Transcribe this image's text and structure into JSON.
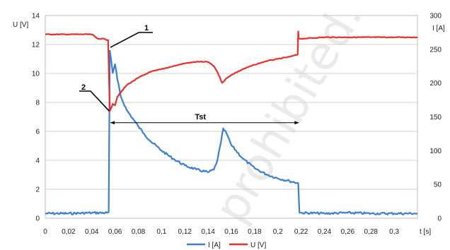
{
  "chart_data": {
    "type": "line",
    "title": "",
    "xlabel": "t [s]",
    "ylabel_left": "U [V]",
    "ylabel_right": "I [A]",
    "xlim": [
      0,
      0.32
    ],
    "ylim_left": [
      0,
      14
    ],
    "ylim_right": [
      0,
      300
    ],
    "x_ticks": [
      "0",
      "0,02",
      "0,04",
      "0,06",
      "0,08",
      "0,1",
      "0,12",
      "0,14",
      "0,16",
      "0,18",
      "0,2",
      "0,22",
      "0,24",
      "0,26",
      "0,28",
      "0,3"
    ],
    "y_ticks_left": [
      "0",
      "2",
      "4",
      "6",
      "8",
      "10",
      "12",
      "14"
    ],
    "y_ticks_right": [
      "0",
      "50",
      "100",
      "150",
      "200",
      "250",
      "300"
    ],
    "grid": "horizontal",
    "legend_position": "bottom",
    "series": [
      {
        "name": "I [A]",
        "axis": "right",
        "color": "#3a7fd5",
        "x": [
          0,
          0.02,
          0.04,
          0.053,
          0.0545,
          0.0555,
          0.058,
          0.06,
          0.062,
          0.065,
          0.07,
          0.075,
          0.08,
          0.085,
          0.09,
          0.1,
          0.11,
          0.12,
          0.13,
          0.14,
          0.145,
          0.148,
          0.151,
          0.153,
          0.156,
          0.16,
          0.17,
          0.18,
          0.19,
          0.2,
          0.21,
          0.2175,
          0.2185,
          0.22,
          0.24,
          0.26,
          0.28,
          0.3,
          0.32
        ],
        "y": [
          7,
          7,
          8,
          8,
          9,
          248,
          215,
          228,
          205,
          180,
          160,
          148,
          136,
          125,
          115,
          100,
          88,
          78,
          72,
          68,
          72,
          86,
          112,
          133,
          125,
          108,
          88,
          74,
          65,
          59,
          55,
          52,
          8,
          8,
          7,
          8,
          7,
          7,
          7
        ]
      },
      {
        "name": "U [V]",
        "axis": "left",
        "color": "#e8302a",
        "x": [
          0,
          0.02,
          0.04,
          0.045,
          0.05,
          0.054,
          0.0555,
          0.058,
          0.06,
          0.062,
          0.065,
          0.07,
          0.08,
          0.09,
          0.1,
          0.11,
          0.12,
          0.13,
          0.14,
          0.145,
          0.148,
          0.152,
          0.155,
          0.16,
          0.17,
          0.18,
          0.19,
          0.2,
          0.21,
          0.217,
          0.2175,
          0.218,
          0.22,
          0.24,
          0.26,
          0.28,
          0.3,
          0.32
        ],
        "y": [
          12.7,
          12.7,
          12.7,
          12.4,
          12.4,
          12.3,
          7.4,
          7.9,
          7.8,
          8.4,
          8.7,
          9.2,
          9.7,
          10.1,
          10.3,
          10.5,
          10.7,
          10.8,
          10.8,
          10.5,
          10.1,
          9.35,
          9.6,
          9.9,
          10.3,
          10.6,
          10.85,
          11.0,
          11.15,
          11.3,
          12.9,
          12.4,
          12.4,
          12.5,
          12.5,
          12.5,
          12.5,
          12.5
        ]
      }
    ],
    "annotations": [
      {
        "label": "1",
        "x": 0.056,
        "y_left": 11.8
      },
      {
        "label": "2",
        "x": 0.055,
        "y_left": 7.4
      },
      {
        "label": "Tst",
        "x_start": 0.056,
        "x_end": 0.218,
        "y_left": 6.5
      }
    ]
  },
  "watermark": "prohibited."
}
